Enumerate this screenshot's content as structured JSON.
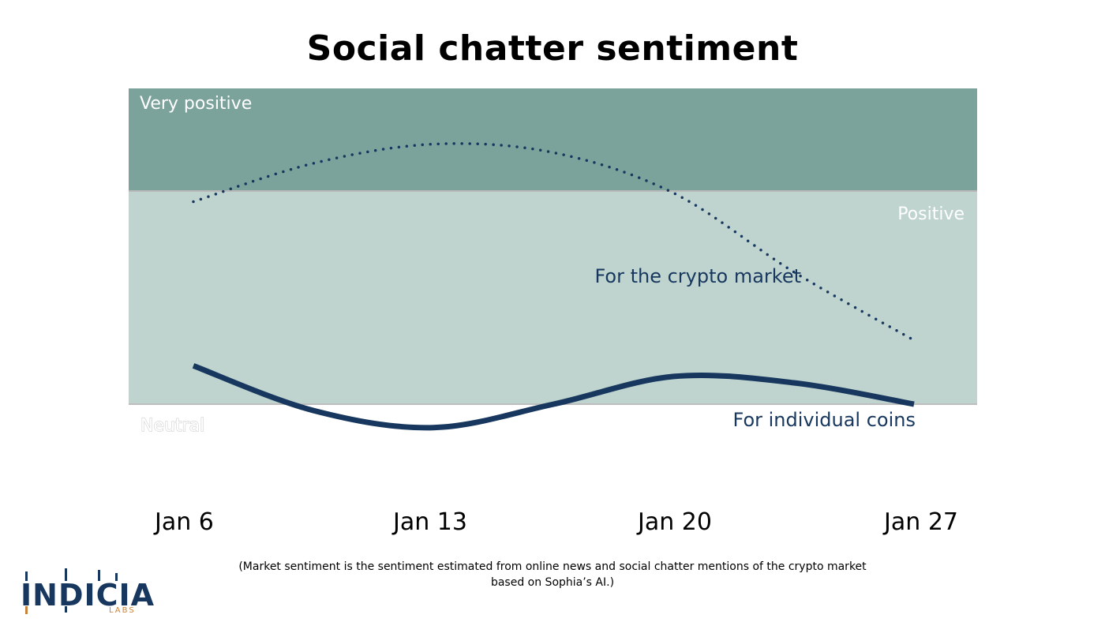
{
  "chart_data": {
    "type": "line",
    "title": "Social chatter sentiment",
    "categories": [
      "Jan 6",
      "Jan 13",
      "Jan 20",
      "Jan 27"
    ],
    "y_scale": "sentiment level (0 = Neutral, 1 = Positive, 1.5 = Very positive upper bound)",
    "ylim": [
      0,
      1.5
    ],
    "bands": [
      {
        "label": "Very positive",
        "from": 1.0,
        "to": 1.5,
        "color": "#7ca39b"
      },
      {
        "label": "Positive",
        "from": 0.0,
        "to": 1.0,
        "color": "#bfd4cf"
      },
      {
        "label": "Neutral",
        "from": 0.0,
        "to": 0.0,
        "color": "#bdbdbd"
      }
    ],
    "series": [
      {
        "name": "For the crypto market",
        "style": "dotted",
        "color": "#17375e",
        "x": [
          0,
          0.5,
          1,
          1.5,
          2,
          2.5,
          3
        ],
        "values": [
          0.95,
          1.13,
          1.22,
          1.18,
          0.99,
          0.62,
          0.3
        ]
      },
      {
        "name": "For individual coins",
        "style": "solid",
        "color": "#17375e",
        "x": [
          0,
          0.5,
          1,
          1.5,
          2,
          2.5,
          3
        ],
        "values": [
          0.18,
          -0.03,
          -0.11,
          0.0,
          0.13,
          0.1,
          0.0
        ]
      }
    ],
    "xlabel": "",
    "ylabel": ""
  },
  "footnote": {
    "line1": "(Market sentiment is the sentiment estimated from online news and social chatter mentions of the crypto market",
    "line2": "based on Sophia’s AI.)"
  },
  "logo": {
    "word": "INDICIA",
    "sub": "LABS"
  }
}
